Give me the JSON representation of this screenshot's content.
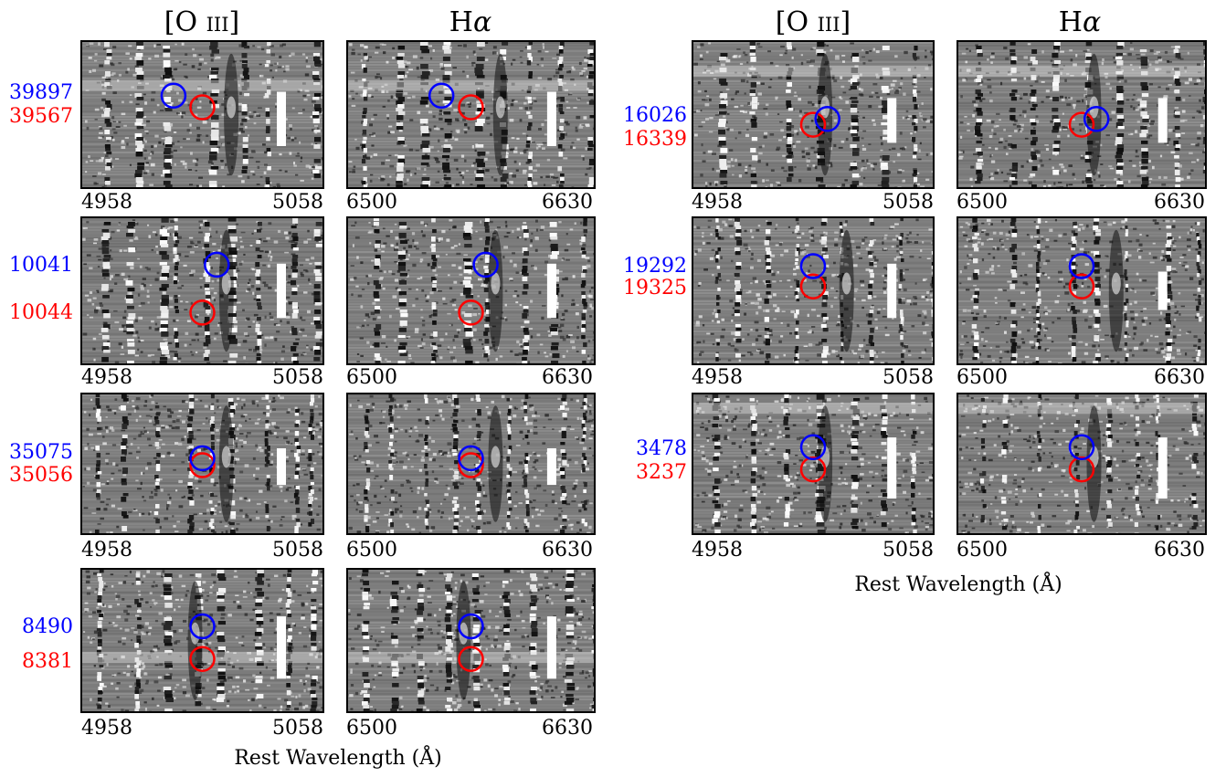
{
  "headers": {
    "o3": {
      "main": "[O ",
      "sc": "iii",
      "close": "]"
    },
    "ha": {
      "main": "H",
      "sub": "α"
    }
  },
  "ticks": {
    "o3": [
      "4958",
      "5058"
    ],
    "ha": [
      "6500",
      "6630"
    ]
  },
  "xlabel": "Rest Wavelength (Å)",
  "colors": {
    "blue": "#0000ff",
    "red": "#ff0000"
  },
  "rows": [
    {
      "blue_id": "39897",
      "red_id": "39567"
    },
    {
      "blue_id": "10041",
      "red_id": "10044"
    },
    {
      "blue_id": "35075",
      "red_id": "35056"
    },
    {
      "blue_id": "8490",
      "red_id": "8381"
    },
    {
      "blue_id": "16026",
      "red_id": "16339"
    },
    {
      "blue_id": "19292",
      "red_id": "19325"
    },
    {
      "blue_id": "3478",
      "red_id": "3237"
    }
  ]
}
